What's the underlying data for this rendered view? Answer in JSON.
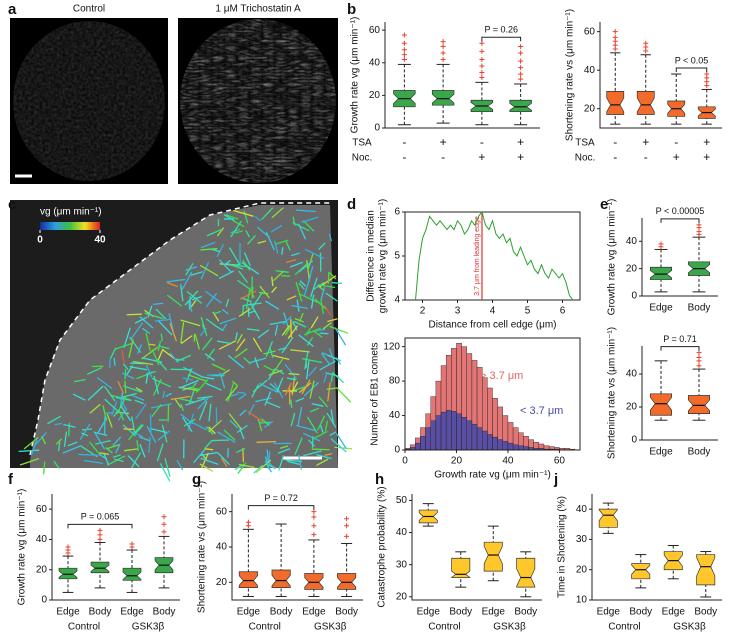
{
  "panel_labels": [
    "a",
    "b",
    "c",
    "d",
    "e",
    "f",
    "g",
    "h",
    "j"
  ],
  "images": [
    {
      "title": "Control"
    },
    {
      "title": "1 μM Trichostatin A"
    }
  ],
  "colorbar": {
    "label": "vg (μm min⁻¹)",
    "clim": [
      0,
      40
    ],
    "ticks": [
      0,
      40
    ]
  },
  "chart_data": [
    {
      "type": "box",
      "ylabel": "Growth rate vg (μm min⁻¹)",
      "color": "#3aa84a",
      "flier_color": "#e8432e",
      "ylim": [
        0,
        65
      ],
      "yticks": [
        0,
        20,
        40,
        60
      ],
      "annotation": "P = 0.26",
      "rows": [
        {
          "label": "TSA",
          "values": [
            "-",
            "+",
            "-",
            "+"
          ]
        },
        {
          "label": "Noc.",
          "values": [
            "-",
            "-",
            "+",
            "+"
          ]
        }
      ],
      "boxes": [
        {
          "whislo": 2,
          "q1": 13,
          "med": 18,
          "q3": 23,
          "whishi": 39,
          "fliers": [
            42,
            45,
            48,
            52,
            57
          ]
        },
        {
          "whislo": 3,
          "q1": 14,
          "med": 18,
          "q3": 23,
          "whishi": 39,
          "fliers": [
            42,
            46,
            50,
            53
          ]
        },
        {
          "whislo": 2,
          "q1": 10,
          "med": 13.5,
          "q3": 17,
          "whishi": 28,
          "fliers": [
            31,
            34,
            38,
            42,
            47,
            52
          ]
        },
        {
          "whislo": 2,
          "q1": 10,
          "med": 13,
          "q3": 17,
          "whishi": 27,
          "fliers": [
            30,
            33,
            37,
            41,
            46,
            50
          ]
        }
      ]
    },
    {
      "type": "box",
      "ylabel": "Shortening rate vs (μm min⁻¹)",
      "color": "#f26b2a",
      "flier_color": "#e8432e",
      "ylim": [
        10,
        65
      ],
      "yticks": [
        20,
        40,
        60
      ],
      "annotation": "P < 0.05",
      "rows": [
        {
          "label": "TSA",
          "values": [
            "-",
            "+",
            "-",
            "+"
          ]
        },
        {
          "label": "Noc.",
          "values": [
            "-",
            "-",
            "+",
            "+"
          ]
        }
      ],
      "boxes": [
        {
          "whislo": 12,
          "q1": 17,
          "med": 22,
          "q3": 29,
          "whishi": 49,
          "fliers": [
            51,
            53,
            55,
            57,
            60
          ]
        },
        {
          "whislo": 12,
          "q1": 17,
          "med": 22,
          "q3": 29,
          "whishi": 48,
          "fliers": [
            50,
            52,
            54
          ]
        },
        {
          "whislo": 12,
          "q1": 16,
          "med": 20,
          "q3": 24,
          "whishi": 38
        },
        {
          "whislo": 12,
          "q1": 15,
          "med": 18,
          "q3": 21,
          "whishi": 30,
          "fliers": [
            32,
            34,
            36,
            38
          ]
        }
      ]
    },
    {
      "type": "line",
      "ylabel": [
        "Difference in median",
        "growth rate vg (μm min⁻¹)"
      ],
      "xlabel": "Distance from cell edge (μm)",
      "xlim": [
        1.5,
        6.5
      ],
      "xticks": [
        2,
        3,
        4,
        5,
        6
      ],
      "ylim": [
        4,
        6
      ],
      "yticks": [
        4,
        5,
        6
      ],
      "reference_line": {
        "x": 3.7,
        "label": "3.7 μm from leading edge",
        "color": "#e03030"
      },
      "x": [
        1.8,
        1.9,
        2.0,
        2.1,
        2.2,
        2.3,
        2.4,
        2.5,
        2.6,
        2.7,
        2.8,
        2.9,
        3.0,
        3.1,
        3.2,
        3.3,
        3.4,
        3.5,
        3.6,
        3.7,
        3.8,
        3.9,
        4.0,
        4.1,
        4.2,
        4.3,
        4.4,
        4.5,
        4.6,
        4.7,
        4.8,
        4.9,
        5.0,
        5.1,
        5.2,
        5.3,
        5.4,
        5.5,
        5.6,
        5.7,
        5.8,
        5.9,
        6.0,
        6.1,
        6.2,
        6.3
      ],
      "series": [
        {
          "color": "#2ca02c",
          "values": [
            4.0,
            4.9,
            5.4,
            5.6,
            5.9,
            5.8,
            5.7,
            5.8,
            5.7,
            5.6,
            5.7,
            5.6,
            5.8,
            5.7,
            5.5,
            5.6,
            5.8,
            5.7,
            5.9,
            6.0,
            5.7,
            5.6,
            5.8,
            5.5,
            5.4,
            5.5,
            5.3,
            5.4,
            5.1,
            5.0,
            5.2,
            5.0,
            4.8,
            4.9,
            4.7,
            4.6,
            4.8,
            4.6,
            4.5,
            4.7,
            4.6,
            4.5,
            4.6,
            4.4,
            4.1,
            4.0
          ]
        }
      ]
    },
    {
      "type": "histogram",
      "ylabel": "Number of EB1 comets",
      "xlabel": "Growth rate vg (μm min⁻¹)",
      "xlim": [
        0,
        68
      ],
      "xticks": [
        0,
        20,
        40,
        60
      ],
      "ylim": [
        0,
        130
      ],
      "yticks": [
        0,
        40,
        80,
        120
      ],
      "bins": [
        0,
        2,
        4,
        6,
        8,
        10,
        12,
        14,
        16,
        18,
        20,
        22,
        24,
        26,
        28,
        30,
        32,
        34,
        36,
        38,
        40,
        42,
        44,
        46,
        48,
        50,
        52,
        54,
        56,
        58,
        60,
        62,
        64,
        66
      ],
      "series": [
        {
          "name": "> 3.7 μm",
          "color": "#e06666",
          "values": [
            2,
            6,
            14,
            26,
            42,
            62,
            80,
            98,
            110,
            118,
            124,
            120,
            112,
            104,
            96,
            84,
            72,
            60,
            50,
            40,
            32,
            26,
            20,
            16,
            12,
            9,
            7,
            5,
            4,
            3,
            2,
            2,
            1
          ]
        },
        {
          "name": "< 3.7 μm",
          "color": "#4a4aa8",
          "values": [
            1,
            3,
            8,
            16,
            26,
            34,
            40,
            44,
            46,
            45,
            42,
            38,
            34,
            30,
            26,
            22,
            18,
            15,
            12,
            10,
            8,
            6,
            5,
            4,
            3,
            2,
            2,
            1,
            1,
            1,
            0,
            0,
            0
          ]
        }
      ]
    },
    {
      "type": "box",
      "ylabel": "Growth rate vg (μm min⁻¹)",
      "color": "#3aa84a",
      "flier_color": "#e8432e",
      "ylim": [
        0,
        57
      ],
      "yticks": [
        0,
        20,
        40
      ],
      "annotation": "P < 0.00005",
      "categories": [
        "Edge",
        "Body"
      ],
      "boxes": [
        {
          "whislo": 3,
          "q1": 12,
          "med": 16,
          "q3": 21,
          "whishi": 34,
          "fliers": [
            36,
            38
          ]
        },
        {
          "whislo": 3,
          "q1": 15,
          "med": 20,
          "q3": 25,
          "whishi": 43,
          "fliers": [
            45,
            47,
            50,
            52
          ]
        }
      ]
    },
    {
      "type": "box",
      "ylabel": "Shortening rate vs (μm min⁻¹)",
      "color": "#f26b2a",
      "flier_color": "#e8432e",
      "ylim": [
        0,
        57
      ],
      "yticks": [
        0,
        20,
        40
      ],
      "annotation": "P = 0.71",
      "categories": [
        "Edge",
        "Body"
      ],
      "boxes": [
        {
          "whislo": 12,
          "q1": 15,
          "med": 22,
          "q3": 28,
          "whishi": 48
        },
        {
          "whislo": 12,
          "q1": 16,
          "med": 21,
          "q3": 27,
          "whishi": 43,
          "fliers": [
            45,
            48,
            50,
            53
          ]
        }
      ]
    },
    {
      "type": "box",
      "ylabel": "Growth rate vg (μm min⁻¹)",
      "color": "#3aa84a",
      "flier_color": "#e8432e",
      "ylim": [
        0,
        70
      ],
      "yticks": [
        0,
        20,
        40,
        60
      ],
      "annotation": "P = 0.065",
      "categories": [
        "Edge",
        "Body",
        "Edge",
        "Body"
      ],
      "groups": [
        "Control",
        "GSK3β"
      ],
      "boxes": [
        {
          "whislo": 5,
          "q1": 14,
          "med": 17,
          "q3": 21,
          "whishi": 29,
          "fliers": [
            31,
            33,
            35
          ]
        },
        {
          "whislo": 8,
          "q1": 18,
          "med": 21,
          "q3": 25,
          "whishi": 38,
          "fliers": [
            40,
            43,
            46
          ]
        },
        {
          "whislo": 5,
          "q1": 13,
          "med": 16,
          "q3": 21,
          "whishi": 33,
          "fliers": [
            35,
            37
          ]
        },
        {
          "whislo": 8,
          "q1": 18,
          "med": 23,
          "q3": 28,
          "whishi": 42,
          "fliers": [
            45,
            50,
            55
          ]
        }
      ]
    },
    {
      "type": "box",
      "ylabel": "Shortening rate vs (μm min⁻¹)",
      "color": "#f26b2a",
      "flier_color": "#e8432e",
      "ylim": [
        10,
        70
      ],
      "yticks": [
        20,
        40,
        60
      ],
      "annotation": "P = 0.72",
      "categories": [
        "Edge",
        "Body",
        "Edge",
        "Body"
      ],
      "groups": [
        "Control",
        "GSK3β"
      ],
      "boxes": [
        {
          "whislo": 12,
          "q1": 17,
          "med": 21,
          "q3": 26,
          "whishi": 50,
          "fliers": [
            52,
            54
          ]
        },
        {
          "whislo": 12,
          "q1": 17,
          "med": 21,
          "q3": 27,
          "whishi": 53
        },
        {
          "whislo": 12,
          "q1": 16,
          "med": 20,
          "q3": 25,
          "whishi": 44,
          "fliers": [
            47,
            52,
            57,
            60
          ]
        },
        {
          "whislo": 12,
          "q1": 16,
          "med": 20,
          "q3": 25,
          "whishi": 42,
          "fliers": [
            46,
            52,
            56
          ]
        }
      ]
    },
    {
      "type": "box",
      "ylabel": "Catastrophe probability (%)",
      "color": "#ffc72c",
      "ylim": [
        19,
        52
      ],
      "yticks": [
        20,
        30,
        40,
        50
      ],
      "categories": [
        "Edge",
        "Body",
        "Edge",
        "Body"
      ],
      "groups": [
        "Control",
        "GSK3β"
      ],
      "boxes": [
        {
          "whislo": 42,
          "q1": 43,
          "med": 45,
          "q3": 47,
          "whishi": 49
        },
        {
          "whislo": 23,
          "q1": 26,
          "med": 27,
          "q3": 32,
          "whishi": 34
        },
        {
          "whislo": 25,
          "q1": 28,
          "med": 33,
          "q3": 37,
          "whishi": 42
        },
        {
          "whislo": 20,
          "q1": 23,
          "med": 26,
          "q3": 32,
          "whishi": 34
        }
      ]
    },
    {
      "type": "box",
      "ylabel": "Time in Shortening (%)",
      "color": "#ffc72c",
      "ylim": [
        10,
        45
      ],
      "yticks": [
        10,
        20,
        30,
        40
      ],
      "categories": [
        "Edge",
        "Body",
        "Edge",
        "Body"
      ],
      "groups": [
        "Control",
        "GSK3β"
      ],
      "boxes": [
        {
          "whislo": 32,
          "q1": 34,
          "med": 38,
          "q3": 40,
          "whishi": 42
        },
        {
          "whislo": 14,
          "q1": 17,
          "med": 20,
          "q3": 22,
          "whishi": 25
        },
        {
          "whislo": 17,
          "q1": 20,
          "med": 23,
          "q3": 26,
          "whishi": 28
        },
        {
          "whislo": 11,
          "q1": 15,
          "med": 21,
          "q3": 25,
          "whishi": 26
        }
      ]
    }
  ]
}
